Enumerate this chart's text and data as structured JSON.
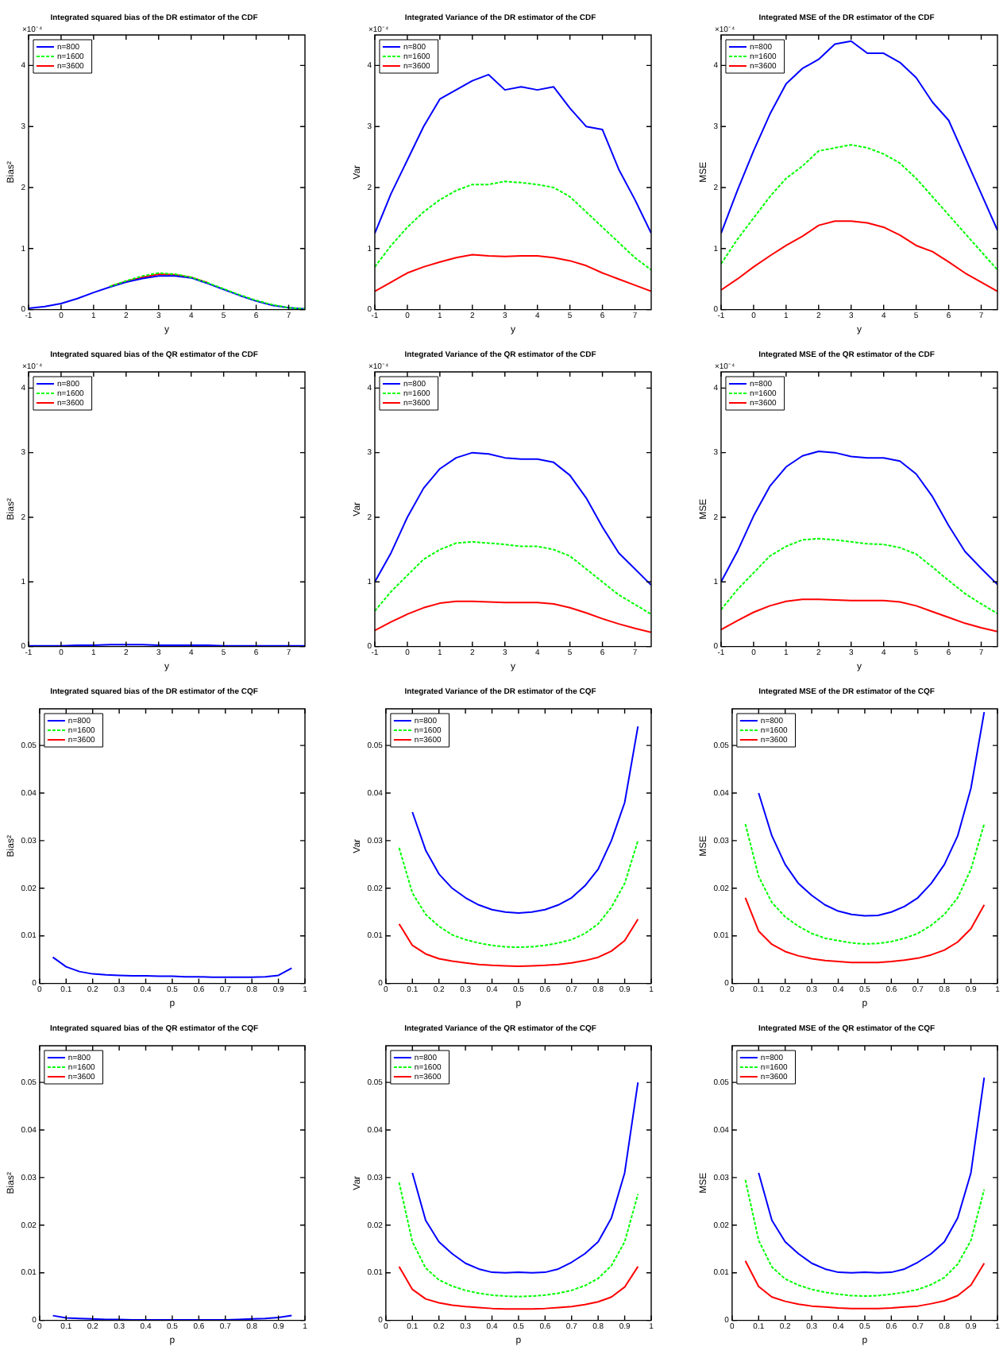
{
  "chart_data": [
    {
      "type": "line",
      "title": "Integrated squared bias of the DR estimator of the CDF",
      "xlabel": "y",
      "ylabel": "Bias²",
      "annotations": [
        "×10⁻⁴"
      ],
      "legend": "top left",
      "x": [
        -1,
        -0.5,
        0,
        0.5,
        1,
        1.5,
        2,
        2.5,
        3,
        3.5,
        4,
        4.5,
        5,
        5.5,
        6,
        6.5,
        7,
        7.5
      ],
      "series": [
        {
          "name": "n=800",
          "color": "#0000ff",
          "line_style": "solid",
          "values": [
            0.02,
            0.05,
            0.1,
            0.18,
            0.28,
            0.37,
            0.45,
            0.51,
            0.55,
            0.55,
            0.52,
            0.43,
            0.33,
            0.23,
            0.14,
            0.07,
            0.03,
            0.01
          ]
        },
        {
          "name": "n=1600",
          "color": "#00ff00",
          "line_style": "dashed",
          "values": [
            null,
            null,
            null,
            null,
            null,
            0.38,
            0.47,
            0.55,
            0.6,
            0.58,
            0.53,
            0.44,
            0.34,
            0.24,
            0.15,
            0.08,
            0.03,
            0.01
          ]
        },
        {
          "name": "n=3600",
          "color": "#ff0000",
          "line_style": "solid",
          "values": [
            null,
            null,
            null,
            null,
            null,
            0.38,
            0.46,
            0.53,
            0.58,
            0.57,
            0.53,
            0.44,
            null,
            null,
            null,
            null,
            null,
            null
          ]
        }
      ],
      "xlim": [
        -1,
        7.5
      ],
      "xticks": [
        -1,
        0,
        1,
        2,
        3,
        4,
        5,
        6,
        7
      ],
      "ylim": [
        0,
        4.5
      ],
      "yticks": [
        0,
        1,
        2,
        3,
        4
      ]
    },
    {
      "type": "line",
      "title": "Integrated Variance of the DR estimator of the CDF",
      "xlabel": "y",
      "ylabel": "Var",
      "annotations": [
        "×10⁻⁴"
      ],
      "legend": "top left",
      "x": [
        -1,
        -0.5,
        0,
        0.5,
        1,
        1.5,
        2,
        2.5,
        3,
        3.5,
        4,
        4.5,
        5,
        5.5,
        6,
        6.5,
        7,
        7.5
      ],
      "series": [
        {
          "name": "n=800",
          "color": "#0000ff",
          "line_style": "solid",
          "values": [
            1.25,
            1.9,
            2.45,
            3.0,
            3.45,
            3.6,
            3.75,
            3.85,
            3.6,
            3.65,
            3.6,
            3.65,
            3.3,
            3.0,
            2.95,
            2.3,
            1.8,
            1.25
          ]
        },
        {
          "name": "n=1600",
          "color": "#00ff00",
          "line_style": "dashed",
          "values": [
            0.7,
            1.05,
            1.35,
            1.6,
            1.8,
            1.95,
            2.05,
            2.05,
            2.1,
            2.08,
            2.05,
            2.0,
            1.85,
            1.6,
            1.35,
            1.1,
            0.85,
            0.65
          ]
        },
        {
          "name": "n=3600",
          "color": "#ff0000",
          "line_style": "solid",
          "values": [
            0.3,
            0.45,
            0.6,
            0.7,
            0.78,
            0.85,
            0.9,
            0.88,
            0.87,
            0.88,
            0.88,
            0.85,
            0.8,
            0.72,
            0.6,
            0.5,
            0.4,
            0.3
          ]
        }
      ],
      "xlim": [
        -1,
        7.5
      ],
      "xticks": [
        -1,
        0,
        1,
        2,
        3,
        4,
        5,
        6,
        7
      ],
      "ylim": [
        0,
        4.5
      ],
      "yticks": [
        0,
        1,
        2,
        3,
        4
      ]
    },
    {
      "type": "line",
      "title": "Integrated MSE of the DR estimator of the CDF",
      "xlabel": "y",
      "ylabel": "MSE",
      "annotations": [
        "×10⁻⁴"
      ],
      "legend": "top left",
      "x": [
        -1,
        -0.5,
        0,
        0.5,
        1,
        1.5,
        2,
        2.5,
        3,
        3.5,
        4,
        4.5,
        5,
        5.5,
        6,
        6.5,
        7,
        7.5
      ],
      "series": [
        {
          "name": "n=800",
          "color": "#0000ff",
          "line_style": "solid",
          "values": [
            1.25,
            1.95,
            2.6,
            3.2,
            3.7,
            3.95,
            4.1,
            4.35,
            4.4,
            4.2,
            4.2,
            4.05,
            3.8,
            3.4,
            3.1,
            2.5,
            1.9,
            1.3
          ]
        },
        {
          "name": "n=1600",
          "color": "#00ff00",
          "line_style": "dashed",
          "values": [
            0.75,
            1.15,
            1.5,
            1.85,
            2.15,
            2.35,
            2.6,
            2.65,
            2.7,
            2.65,
            2.55,
            2.4,
            2.15,
            1.85,
            1.55,
            1.25,
            0.95,
            0.65
          ]
        },
        {
          "name": "n=3600",
          "color": "#ff0000",
          "line_style": "solid",
          "values": [
            0.32,
            0.5,
            0.7,
            0.88,
            1.05,
            1.2,
            1.38,
            1.45,
            1.45,
            1.42,
            1.35,
            1.22,
            1.05,
            0.95,
            0.78,
            0.6,
            0.45,
            0.3
          ]
        }
      ],
      "xlim": [
        -1,
        7.5
      ],
      "xticks": [
        -1,
        0,
        1,
        2,
        3,
        4,
        5,
        6,
        7
      ],
      "ylim": [
        0,
        4.5
      ],
      "yticks": [
        0,
        1,
        2,
        3,
        4
      ]
    },
    {
      "type": "line",
      "title": "Integrated squared bias of the QR estimator of the CDF",
      "xlabel": "y",
      "ylabel": "Bias²",
      "annotations": [
        "×10⁻⁴"
      ],
      "legend": "top left",
      "x": [
        -1,
        -0.5,
        0,
        0.5,
        1,
        1.5,
        2,
        2.5,
        3,
        3.5,
        4,
        4.5,
        5,
        5.5,
        6,
        6.5,
        7,
        7.5
      ],
      "series": [
        {
          "name": "n=800",
          "color": "#0000ff",
          "line_style": "solid",
          "values": [
            0.01,
            0.01,
            0.01,
            0.02,
            0.02,
            0.03,
            0.03,
            0.03,
            0.02,
            0.02,
            0.02,
            0.02,
            0.01,
            0.01,
            0.01,
            0.01,
            0.01,
            0.01
          ]
        },
        {
          "name": "n=1600",
          "color": "#00ff00",
          "line_style": "dashed",
          "values": [
            null,
            null,
            null,
            null,
            null,
            null,
            null,
            null,
            null,
            null,
            null,
            null,
            null,
            null,
            null,
            null,
            null,
            null
          ]
        },
        {
          "name": "n=3600",
          "color": "#ff0000",
          "line_style": "solid",
          "values": [
            null,
            null,
            null,
            null,
            null,
            null,
            null,
            null,
            null,
            null,
            null,
            null,
            null,
            null,
            null,
            null,
            null,
            null
          ]
        }
      ],
      "xlim": [
        -1,
        7.5
      ],
      "xticks": [
        -1,
        0,
        1,
        2,
        3,
        4,
        5,
        6,
        7
      ],
      "ylim": [
        0,
        4.25
      ],
      "yticks": [
        0,
        1,
        2,
        3,
        4
      ]
    },
    {
      "type": "line",
      "title": "Integrated Variance of the QR estimator of the CDF",
      "xlabel": "y",
      "ylabel": "Var",
      "annotations": [
        "×10⁻⁴"
      ],
      "legend": "top left",
      "x": [
        -1,
        -0.5,
        0,
        0.5,
        1,
        1.5,
        2,
        2.5,
        3,
        3.5,
        4,
        4.5,
        5,
        5.5,
        6,
        6.5,
        7,
        7.5
      ],
      "series": [
        {
          "name": "n=800",
          "color": "#0000ff",
          "line_style": "solid",
          "values": [
            1.0,
            1.45,
            2.0,
            2.45,
            2.75,
            2.92,
            3.0,
            2.98,
            2.92,
            2.9,
            2.9,
            2.85,
            2.65,
            2.3,
            1.85,
            1.45,
            1.2,
            0.95
          ]
        },
        {
          "name": "n=1600",
          "color": "#00ff00",
          "line_style": "dashed",
          "values": [
            0.55,
            0.85,
            1.1,
            1.35,
            1.5,
            1.6,
            1.62,
            1.6,
            1.58,
            1.55,
            1.55,
            1.5,
            1.4,
            1.2,
            1.0,
            0.8,
            0.65,
            0.5
          ]
        },
        {
          "name": "n=3600",
          "color": "#ff0000",
          "line_style": "solid",
          "values": [
            0.25,
            0.38,
            0.5,
            0.6,
            0.67,
            0.7,
            0.7,
            0.69,
            0.68,
            0.68,
            0.68,
            0.66,
            0.6,
            0.52,
            0.43,
            0.35,
            0.28,
            0.22
          ]
        }
      ],
      "xlim": [
        -1,
        7.5
      ],
      "xticks": [
        -1,
        0,
        1,
        2,
        3,
        4,
        5,
        6,
        7
      ],
      "ylim": [
        0,
        4.25
      ],
      "yticks": [
        0,
        1,
        2,
        3,
        4
      ]
    },
    {
      "type": "line",
      "title": "Integrated MSE of the QR estimator of the CDF",
      "xlabel": "y",
      "ylabel": "MSE",
      "annotations": [
        "×10⁻⁴"
      ],
      "legend": "top left",
      "x": [
        -1,
        -0.5,
        0,
        0.5,
        1,
        1.5,
        2,
        2.5,
        3,
        3.5,
        4,
        4.5,
        5,
        5.5,
        6,
        6.5,
        7,
        7.5
      ],
      "series": [
        {
          "name": "n=800",
          "color": "#0000ff",
          "line_style": "solid",
          "values": [
            1.0,
            1.47,
            2.02,
            2.48,
            2.78,
            2.95,
            3.02,
            3.0,
            2.94,
            2.92,
            2.92,
            2.87,
            2.67,
            2.32,
            1.87,
            1.47,
            1.21,
            0.96
          ]
        },
        {
          "name": "n=1600",
          "color": "#00ff00",
          "line_style": "dashed",
          "values": [
            0.57,
            0.88,
            1.14,
            1.4,
            1.55,
            1.65,
            1.67,
            1.65,
            1.62,
            1.59,
            1.58,
            1.53,
            1.43,
            1.23,
            1.02,
            0.82,
            0.66,
            0.51
          ]
        },
        {
          "name": "n=3600",
          "color": "#ff0000",
          "line_style": "solid",
          "values": [
            0.26,
            0.4,
            0.53,
            0.63,
            0.7,
            0.73,
            0.73,
            0.72,
            0.71,
            0.71,
            0.71,
            0.69,
            0.63,
            0.54,
            0.45,
            0.36,
            0.29,
            0.23
          ]
        }
      ],
      "xlim": [
        -1,
        7.5
      ],
      "xticks": [
        -1,
        0,
        1,
        2,
        3,
        4,
        5,
        6,
        7
      ],
      "ylim": [
        0,
        4.25
      ],
      "yticks": [
        0,
        1,
        2,
        3,
        4
      ]
    },
    {
      "type": "line",
      "title": "Integrated squared bias of the DR estimator of the CQF",
      "xlabel": "p",
      "ylabel": "Bias²",
      "legend": "top left",
      "x": [
        0.05,
        0.1,
        0.15,
        0.2,
        0.25,
        0.3,
        0.35,
        0.4,
        0.45,
        0.5,
        0.55,
        0.6,
        0.65,
        0.7,
        0.75,
        0.8,
        0.85,
        0.9,
        0.95
      ],
      "series": [
        {
          "name": "n=800",
          "color": "#0000ff",
          "line_style": "solid",
          "values": [
            0.0055,
            0.0035,
            0.0025,
            0.002,
            0.0018,
            0.0017,
            0.0016,
            0.0016,
            0.0015,
            0.0015,
            0.0014,
            0.0014,
            0.0013,
            0.0013,
            0.0013,
            0.0013,
            0.0014,
            0.0017,
            0.0032
          ]
        },
        {
          "name": "n=1600",
          "color": "#00ff00",
          "line_style": "dashed",
          "values": [
            null,
            null,
            null,
            null,
            null,
            null,
            null,
            null,
            null,
            null,
            null,
            null,
            null,
            null,
            null,
            null,
            null,
            null,
            null
          ]
        },
        {
          "name": "n=3600",
          "color": "#ff0000",
          "line_style": "solid",
          "values": [
            null,
            null,
            null,
            null,
            null,
            null,
            null,
            null,
            null,
            null,
            null,
            null,
            null,
            null,
            null,
            null,
            null,
            null,
            null
          ]
        }
      ],
      "xlim": [
        0,
        1
      ],
      "xticks": [
        0,
        0.1,
        0.2,
        0.3,
        0.4,
        0.5,
        0.6,
        0.7,
        0.8,
        0.9,
        1
      ],
      "ylim": [
        0,
        0.0577
      ],
      "yticks": [
        0,
        0.01,
        0.02,
        0.03,
        0.04,
        0.05
      ]
    },
    {
      "type": "line",
      "title": "Integrated Variance of the DR estimator of the CQF",
      "xlabel": "p",
      "ylabel": "Var",
      "legend": "top left",
      "x": [
        0.05,
        0.1,
        0.15,
        0.2,
        0.25,
        0.3,
        0.35,
        0.4,
        0.45,
        0.5,
        0.55,
        0.6,
        0.65,
        0.7,
        0.75,
        0.8,
        0.85,
        0.9,
        0.95
      ],
      "series": [
        {
          "name": "n=800",
          "color": "#0000ff",
          "line_style": "solid",
          "values": [
            null,
            0.036,
            0.028,
            0.023,
            0.02,
            0.018,
            0.0165,
            0.0155,
            0.015,
            0.0148,
            0.015,
            0.0155,
            0.0165,
            0.018,
            0.0205,
            0.024,
            0.03,
            0.038,
            0.054
          ]
        },
        {
          "name": "n=1600",
          "color": "#00ff00",
          "line_style": "dashed",
          "values": [
            0.0285,
            0.019,
            0.0145,
            0.012,
            0.0102,
            0.0092,
            0.0085,
            0.008,
            0.0077,
            0.0076,
            0.0077,
            0.008,
            0.0085,
            0.0092,
            0.0105,
            0.0125,
            0.016,
            0.021,
            0.03
          ]
        },
        {
          "name": "n=3600",
          "color": "#ff0000",
          "line_style": "solid",
          "values": [
            0.0125,
            0.008,
            0.0062,
            0.0052,
            0.0047,
            0.0043,
            0.004,
            0.0038,
            0.0037,
            0.0036,
            0.0037,
            0.0038,
            0.004,
            0.0043,
            0.0048,
            0.0055,
            0.0068,
            0.009,
            0.0135
          ]
        }
      ],
      "xlim": [
        0,
        1
      ],
      "xticks": [
        0,
        0.1,
        0.2,
        0.3,
        0.4,
        0.5,
        0.6,
        0.7,
        0.8,
        0.9,
        1
      ],
      "ylim": [
        0,
        0.0577
      ],
      "yticks": [
        0,
        0.01,
        0.02,
        0.03,
        0.04,
        0.05
      ]
    },
    {
      "type": "line",
      "title": "Integrated MSE of the DR estimator of the CQF",
      "xlabel": "p",
      "ylabel": "MSE",
      "legend": "top left",
      "x": [
        0.05,
        0.1,
        0.15,
        0.2,
        0.25,
        0.3,
        0.35,
        0.4,
        0.45,
        0.5,
        0.55,
        0.6,
        0.65,
        0.7,
        0.75,
        0.8,
        0.85,
        0.9,
        0.95
      ],
      "series": [
        {
          "name": "n=800",
          "color": "#0000ff",
          "line_style": "solid",
          "values": [
            null,
            0.04,
            0.031,
            0.025,
            0.021,
            0.0185,
            0.0165,
            0.0152,
            0.0145,
            0.0142,
            0.0143,
            0.015,
            0.0162,
            0.018,
            0.021,
            0.025,
            0.031,
            0.041,
            0.057
          ]
        },
        {
          "name": "n=1600",
          "color": "#00ff00",
          "line_style": "dashed",
          "values": [
            0.0335,
            0.0225,
            0.017,
            0.014,
            0.012,
            0.0105,
            0.0095,
            0.009,
            0.0085,
            0.0083,
            0.0084,
            0.0088,
            0.0095,
            0.0105,
            0.0122,
            0.0145,
            0.018,
            0.024,
            0.0335
          ]
        },
        {
          "name": "n=3600",
          "color": "#ff0000",
          "line_style": "solid",
          "values": [
            0.018,
            0.011,
            0.0082,
            0.0067,
            0.0058,
            0.0052,
            0.0048,
            0.0046,
            0.0044,
            0.0044,
            0.0044,
            0.0046,
            0.0049,
            0.0053,
            0.006,
            0.007,
            0.0087,
            0.0115,
            0.0165
          ]
        }
      ],
      "xlim": [
        0,
        1
      ],
      "xticks": [
        0,
        0.1,
        0.2,
        0.3,
        0.4,
        0.5,
        0.6,
        0.7,
        0.8,
        0.9,
        1
      ],
      "ylim": [
        0,
        0.0577
      ],
      "yticks": [
        0,
        0.01,
        0.02,
        0.03,
        0.04,
        0.05
      ]
    },
    {
      "type": "line",
      "title": "Integrated squared bias of the QR estimator of the CQF",
      "xlabel": "p",
      "ylabel": "Bias²",
      "legend": "top left",
      "x": [
        0.05,
        0.1,
        0.15,
        0.2,
        0.25,
        0.3,
        0.35,
        0.4,
        0.45,
        0.5,
        0.55,
        0.6,
        0.65,
        0.7,
        0.75,
        0.8,
        0.85,
        0.9,
        0.95
      ],
      "series": [
        {
          "name": "n=800",
          "color": "#0000ff",
          "line_style": "solid",
          "values": [
            0.001,
            0.0005,
            0.0004,
            0.0003,
            0.0002,
            0.0002,
            0.0001,
            0.0001,
            0.0001,
            0.0001,
            0.0001,
            0.0001,
            0.0001,
            0.0001,
            0.0002,
            0.0003,
            0.0004,
            0.0006,
            0.001
          ]
        },
        {
          "name": "n=1600",
          "color": "#00ff00",
          "line_style": "dashed",
          "values": [
            null,
            null,
            null,
            null,
            null,
            null,
            null,
            null,
            null,
            null,
            null,
            null,
            null,
            null,
            null,
            null,
            null,
            null,
            null
          ]
        },
        {
          "name": "n=3600",
          "color": "#ff0000",
          "line_style": "solid",
          "values": [
            null,
            null,
            null,
            null,
            null,
            null,
            null,
            null,
            null,
            null,
            null,
            null,
            null,
            null,
            null,
            null,
            null,
            null,
            null
          ]
        }
      ],
      "xlim": [
        0,
        1
      ],
      "xticks": [
        0,
        0.1,
        0.2,
        0.3,
        0.4,
        0.5,
        0.6,
        0.7,
        0.8,
        0.9,
        1
      ],
      "ylim": [
        0,
        0.0577
      ],
      "yticks": [
        0,
        0.01,
        0.02,
        0.03,
        0.04,
        0.05
      ]
    },
    {
      "type": "line",
      "title": "Integrated Variance of the QR estimator of the CQF",
      "xlabel": "p",
      "ylabel": "Var",
      "legend": "top left",
      "x": [
        0.05,
        0.1,
        0.15,
        0.2,
        0.25,
        0.3,
        0.35,
        0.4,
        0.45,
        0.5,
        0.55,
        0.6,
        0.65,
        0.7,
        0.75,
        0.8,
        0.85,
        0.9,
        0.95
      ],
      "series": [
        {
          "name": "n=800",
          "color": "#0000ff",
          "line_style": "solid",
          "values": [
            null,
            0.031,
            0.021,
            0.0165,
            0.014,
            0.012,
            0.0108,
            0.0101,
            0.01,
            0.0101,
            0.01,
            0.0101,
            0.0108,
            0.0122,
            0.014,
            0.0165,
            0.0215,
            0.031,
            0.05
          ]
        },
        {
          "name": "n=1600",
          "color": "#00ff00",
          "line_style": "dashed",
          "values": [
            0.029,
            0.0165,
            0.011,
            0.0085,
            0.0072,
            0.0063,
            0.0057,
            0.0053,
            0.0051,
            0.005,
            0.0051,
            0.0053,
            0.0057,
            0.0063,
            0.0073,
            0.0088,
            0.0115,
            0.0165,
            0.0265
          ]
        },
        {
          "name": "n=3600",
          "color": "#ff0000",
          "line_style": "solid",
          "values": [
            0.0113,
            0.0065,
            0.0045,
            0.0037,
            0.0032,
            0.0029,
            0.0027,
            0.0025,
            0.0024,
            0.0024,
            0.0024,
            0.0025,
            0.0027,
            0.0029,
            0.0033,
            0.0039,
            0.0049,
            0.007,
            0.0113
          ]
        }
      ],
      "xlim": [
        0,
        1
      ],
      "xticks": [
        0,
        0.1,
        0.2,
        0.3,
        0.4,
        0.5,
        0.6,
        0.7,
        0.8,
        0.9,
        1
      ],
      "ylim": [
        0,
        0.0577
      ],
      "yticks": [
        0,
        0.01,
        0.02,
        0.03,
        0.04,
        0.05
      ]
    },
    {
      "type": "line",
      "title": "Integrated MSE of the QR estimator of the CQF",
      "xlabel": "p",
      "ylabel": "MSE",
      "legend": "top left",
      "x": [
        0.05,
        0.1,
        0.15,
        0.2,
        0.25,
        0.3,
        0.35,
        0.4,
        0.45,
        0.5,
        0.55,
        0.6,
        0.65,
        0.7,
        0.75,
        0.8,
        0.85,
        0.9,
        0.95
      ],
      "series": [
        {
          "name": "n=800",
          "color": "#0000ff",
          "line_style": "solid",
          "values": [
            null,
            0.031,
            0.021,
            0.0165,
            0.014,
            0.012,
            0.0108,
            0.0101,
            0.01,
            0.0101,
            0.01,
            0.0101,
            0.0108,
            0.0122,
            0.014,
            0.0165,
            0.0215,
            0.031,
            0.051
          ]
        },
        {
          "name": "n=1600",
          "color": "#00ff00",
          "line_style": "dashed",
          "values": [
            0.0295,
            0.0168,
            0.0112,
            0.0087,
            0.0074,
            0.0065,
            0.0059,
            0.0055,
            0.0052,
            0.0051,
            0.0052,
            0.0055,
            0.0059,
            0.0065,
            0.0075,
            0.009,
            0.0118,
            0.0168,
            0.0275
          ]
        },
        {
          "name": "n=3600",
          "color": "#ff0000",
          "line_style": "solid",
          "values": [
            0.0125,
            0.0071,
            0.0049,
            0.004,
            0.0034,
            0.003,
            0.0028,
            0.0026,
            0.0025,
            0.0025,
            0.0025,
            0.0026,
            0.0028,
            0.003,
            0.0035,
            0.0041,
            0.0052,
            0.0074,
            0.012
          ]
        }
      ],
      "xlim": [
        0,
        1
      ],
      "xticks": [
        0,
        0.1,
        0.2,
        0.3,
        0.4,
        0.5,
        0.6,
        0.7,
        0.8,
        0.9,
        1
      ],
      "ylim": [
        0,
        0.0577
      ],
      "yticks": [
        0,
        0.01,
        0.02,
        0.03,
        0.04,
        0.05
      ]
    }
  ]
}
